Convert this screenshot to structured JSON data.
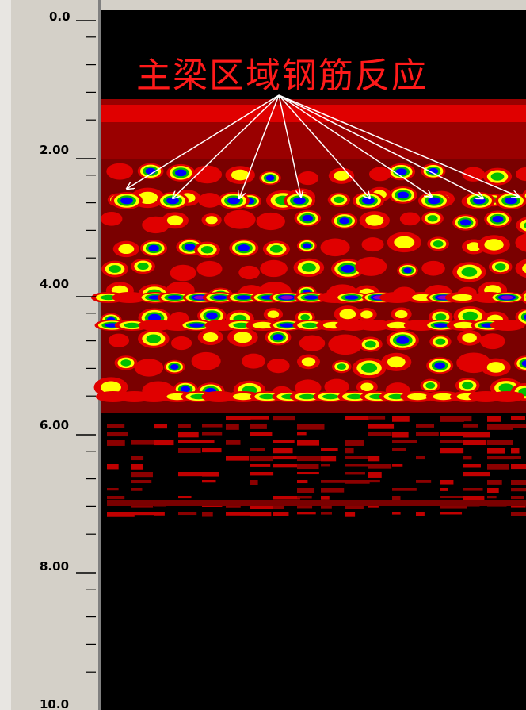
{
  "annotation": "主梁区域钢筋反应",
  "depth_axis": {
    "labels": [
      "0.0",
      "2.00",
      "4.00",
      "6.00",
      "8.00",
      "10.0"
    ]
  }
}
